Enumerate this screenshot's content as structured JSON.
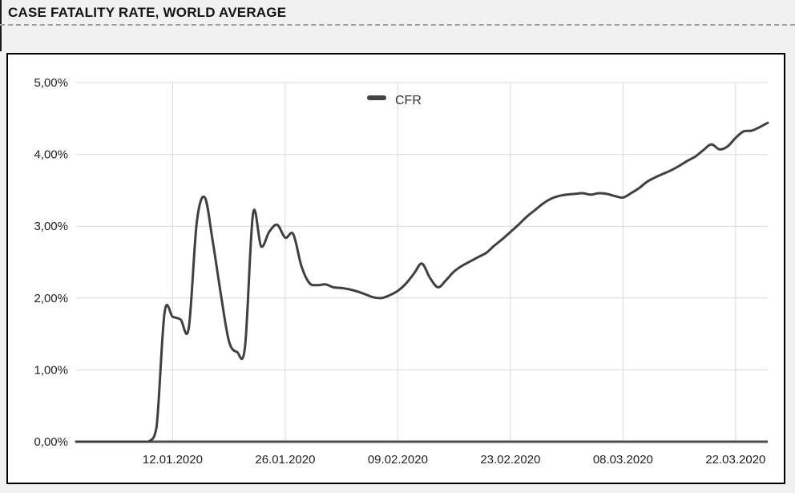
{
  "header": {
    "title": "CASE FATALITY RATE, WORLD AVERAGE"
  },
  "colors": {
    "page_background": "#f1f1f1",
    "card_background": "#ffffff",
    "card_border": "#000000",
    "dashed_divider": "#9e9e9e",
    "grid": "#d9d9d9",
    "axis": "#4d4d4d",
    "line": "#404040",
    "legend_marker": "#434343",
    "tick_text": "#212121",
    "title_text": "#141414"
  },
  "chart_data": {
    "type": "line",
    "title": "CASE FATALITY RATE, WORLD AVERAGE",
    "xlabel": "",
    "ylabel": "",
    "ylim": [
      0,
      5
    ],
    "grid": true,
    "legend_position": "top-center-inside",
    "y_ticks": [
      "0,00%",
      "1,00%",
      "2,00%",
      "3,00%",
      "4,00%",
      "5,00%"
    ],
    "x_ticks": [
      {
        "label": "12.01.2020",
        "day_index": 12
      },
      {
        "label": "26.01.2020",
        "day_index": 26
      },
      {
        "label": "09.02.2020",
        "day_index": 40
      },
      {
        "label": "23.02.2020",
        "day_index": 54
      },
      {
        "label": "08.03.2020",
        "day_index": 68
      },
      {
        "label": "22.03.2020",
        "day_index": 82
      }
    ],
    "x_unit": "daily points, day_index 0 = 31.12.2019 (estimated from tick spacing)",
    "series": [
      {
        "name": "CFR",
        "unit": "%",
        "values": [
          0,
          0,
          0,
          0,
          0,
          0,
          0,
          0,
          0,
          0,
          0.2,
          1.8,
          1.74,
          1.7,
          1.58,
          3.05,
          3.4,
          2.78,
          2.05,
          1.4,
          1.25,
          1.32,
          3.18,
          2.72,
          2.92,
          3.02,
          2.84,
          2.89,
          2.45,
          2.21,
          2.18,
          2.19,
          2.15,
          2.14,
          2.12,
          2.09,
          2.05,
          2.01,
          2.0,
          2.04,
          2.1,
          2.2,
          2.34,
          2.48,
          2.28,
          2.15,
          2.25,
          2.37,
          2.45,
          2.51,
          2.57,
          2.63,
          2.73,
          2.82,
          2.92,
          3.02,
          3.13,
          3.22,
          3.31,
          3.38,
          3.42,
          3.44,
          3.45,
          3.46,
          3.44,
          3.46,
          3.45,
          3.42,
          3.4,
          3.46,
          3.53,
          3.62,
          3.68,
          3.73,
          3.78,
          3.84,
          3.91,
          3.97,
          4.06,
          4.14,
          4.07,
          4.11,
          4.23,
          4.32,
          4.33,
          4.38,
          4.44
        ]
      }
    ]
  }
}
